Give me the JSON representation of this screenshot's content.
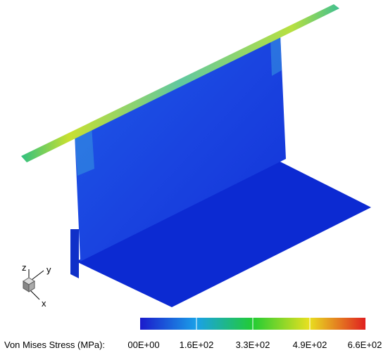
{
  "triad": {
    "z": "z",
    "y": "y",
    "x": "x"
  },
  "colorbar": {
    "title": "Von Mises Stress (MPa):",
    "tick_labels": [
      "00E+00",
      "1.6E+02",
      "3.3E+02",
      "4.9E+02",
      "6.6E+02"
    ]
  }
}
